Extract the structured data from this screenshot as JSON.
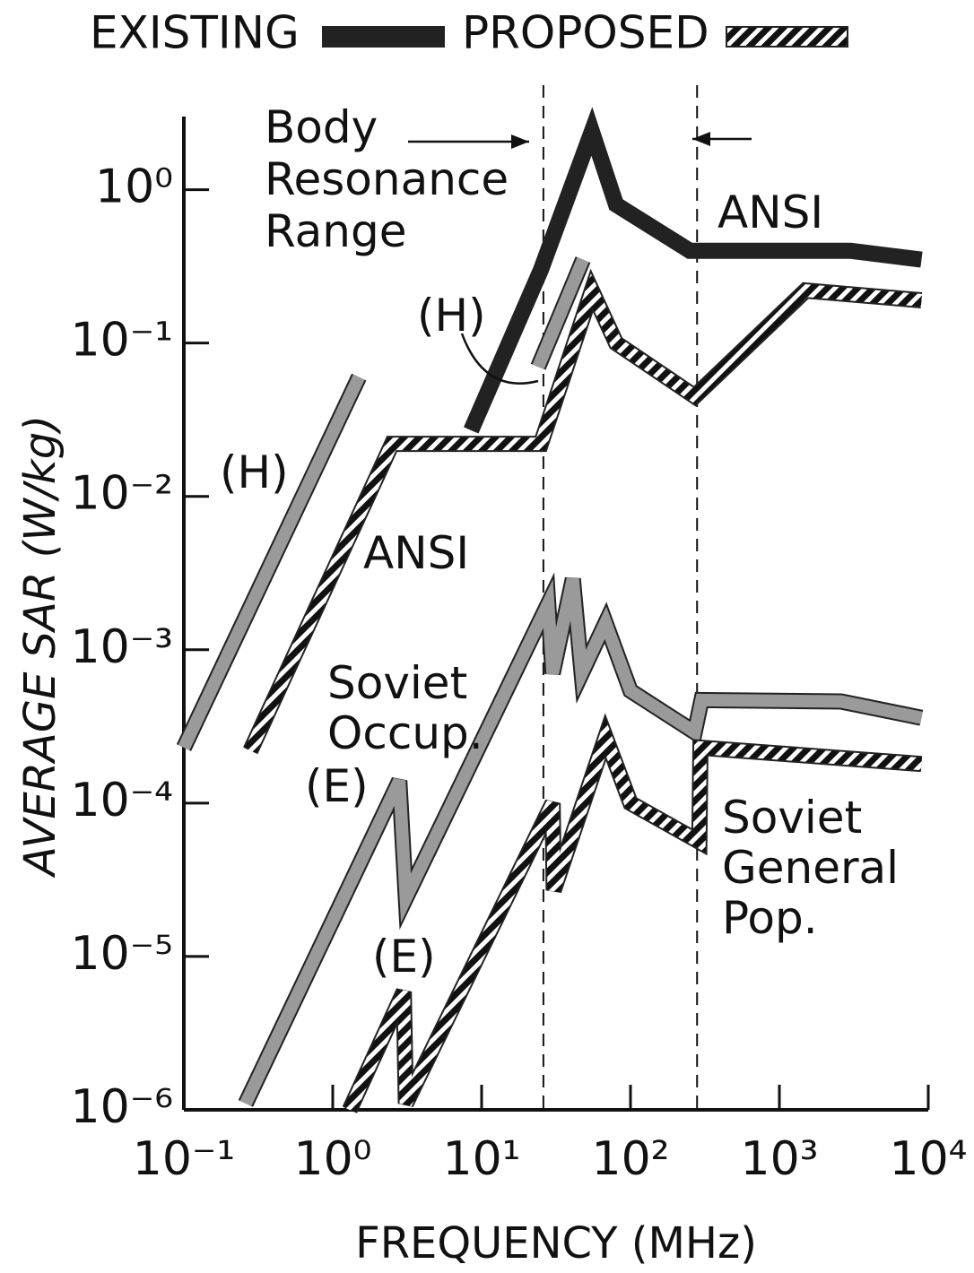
{
  "chart_data": {
    "type": "line",
    "log_x": true,
    "log_y": true,
    "xlabel": "FREQUENCY (MHz)",
    "ylabel": "AVERAGE SAR (W/kg)",
    "xlim": [
      0.1,
      10000
    ],
    "ylim": [
      1e-06,
      3
    ],
    "xticks": [
      {
        "value": 0.1,
        "label": "10⁻¹"
      },
      {
        "value": 1,
        "label": "10⁰"
      },
      {
        "value": 10,
        "label": "10¹"
      },
      {
        "value": 100,
        "label": "10²"
      },
      {
        "value": 1000,
        "label": "10³"
      },
      {
        "value": 10000,
        "label": "10⁴"
      }
    ],
    "yticks": [
      {
        "value": 1e-06,
        "label": "10⁻⁶"
      },
      {
        "value": 1e-05,
        "label": "10⁻⁵"
      },
      {
        "value": 0.0001,
        "label": "10⁻⁴"
      },
      {
        "value": 0.001,
        "label": "10⁻³"
      },
      {
        "value": 0.01,
        "label": "10⁻²"
      },
      {
        "value": 0.1,
        "label": "10⁻¹"
      },
      {
        "value": 1,
        "label": "10⁰"
      }
    ],
    "legend": [
      {
        "label": "EXISTING",
        "color": "#222222",
        "hatched": false
      },
      {
        "label": "PROPOSED",
        "color": "#222222",
        "hatched": true
      }
    ],
    "vlines": [
      26,
      280
    ],
    "series": [
      {
        "name": "ANSI",
        "legend": 0,
        "color": "#222222",
        "hatched": false,
        "x": [
          8.5,
          25,
          55,
          80,
          250,
          3000,
          9000
        ],
        "values": [
          0.027,
          0.3,
          2.4,
          0.8,
          0.4,
          0.4,
          0.35
        ]
      },
      {
        "name": "ANSI",
        "legend": 1,
        "color": "#222222",
        "hatched": true,
        "x": [
          0.28,
          2.5,
          25,
          55,
          80,
          270,
          1500,
          9000
        ],
        "values": [
          0.00022,
          0.022,
          0.022,
          0.22,
          0.1,
          0.045,
          0.22,
          0.19
        ]
      },
      {
        "name": "(H)",
        "legend": 0,
        "color": "#9a9a9a",
        "hatched": false,
        "x": [
          0.1,
          1.5
        ],
        "values": [
          0.00023,
          0.06
        ]
      },
      {
        "name": "(H)",
        "legend": 0,
        "color": "#9a9a9a",
        "hatched": false,
        "x": [
          24,
          48
        ],
        "values": [
          0.07,
          0.35
        ]
      },
      {
        "name": "Soviet Occup.",
        "legend": 0,
        "color": "#9a9a9a",
        "hatched": false,
        "x": [
          0.26,
          2.8,
          3.1,
          28,
          30,
          41,
          47,
          68,
          100,
          270,
          300,
          2600,
          9000
        ],
        "values": [
          1.1e-06,
          0.00014,
          2.4e-05,
          0.002,
          0.0007,
          0.0029,
          0.0007,
          0.0015,
          0.00054,
          0.00029,
          0.00047,
          0.00046,
          0.00036
        ]
      },
      {
        "name": "Soviet General Pop.",
        "legend": 1,
        "color": "#222222",
        "hatched": true,
        "x": [
          1.3,
          3,
          3.1,
          30,
          30.5,
          68,
          100,
          290,
          295,
          9000
        ],
        "values": [
          1e-06,
          5.9e-06,
          1.1e-06,
          0.0001,
          2.7e-05,
          0.00027,
          0.0001,
          5.6e-05,
          0.00023,
          0.00018
        ]
      }
    ],
    "annotations": [
      "Body Resonance Range",
      "(E)",
      "(E)"
    ]
  }
}
